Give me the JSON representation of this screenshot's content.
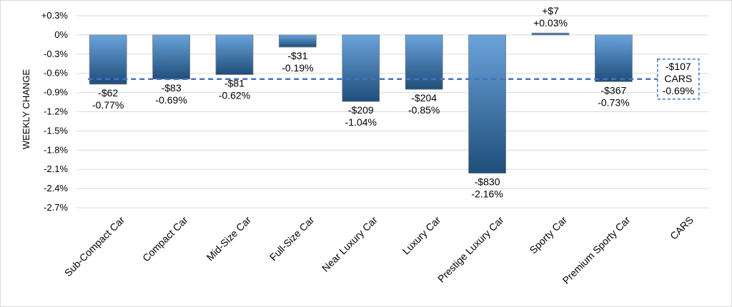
{
  "chart_data": {
    "type": "bar",
    "ylabel": "WEEKLY CHANGE",
    "ylim": [
      -2.7,
      0.3
    ],
    "y_ticks": [
      {
        "value": 0.3,
        "label": "+0.3%"
      },
      {
        "value": 0,
        "label": "0%"
      },
      {
        "value": -0.3,
        "label": "-0.3%"
      },
      {
        "value": -0.6,
        "label": "-0.6%"
      },
      {
        "value": -0.9,
        "label": "-0.9%"
      },
      {
        "value": -1.2,
        "label": "-1.2%"
      },
      {
        "value": -1.5,
        "label": "-1.5%"
      },
      {
        "value": -1.8,
        "label": "-1.8%"
      },
      {
        "value": -2.1,
        "label": "-2.1%"
      },
      {
        "value": -2.4,
        "label": "-2.4%"
      },
      {
        "value": -2.7,
        "label": "-2.7%"
      }
    ],
    "categories": [
      "Sub-Compact Car",
      "Compact Car",
      "Mid-Size Car",
      "Full-Size Car",
      "Near Luxury Car",
      "Luxury Car",
      "Prestige Luxury Car",
      "Sporty Car",
      "Premium Sporty Car",
      "CARS"
    ],
    "values": [
      -0.77,
      -0.69,
      -0.62,
      -0.19,
      -1.04,
      -0.85,
      -2.16,
      0.03,
      -0.73,
      null
    ],
    "dollar_labels": [
      "-$62",
      "-$83",
      "-$81",
      "-$31",
      "-$209",
      "-$204",
      "-$830",
      "+$7",
      "-$367",
      "-$107"
    ],
    "percent_labels": [
      "-0.77%",
      "-0.69%",
      "-0.62%",
      "-0.19%",
      "-1.04%",
      "-0.85%",
      "-2.16%",
      "+0.03%",
      "-0.73%",
      "-0.69%"
    ],
    "reference_line": {
      "value": -0.69,
      "label_lines": [
        "-$107",
        "CARS",
        "-0.69%"
      ],
      "color": "#4472c4"
    },
    "grid": true,
    "colors": {
      "bar_light": "#6aa3dc",
      "bar_dark": "#1f4e79",
      "grid": "#d9d9d9"
    }
  }
}
